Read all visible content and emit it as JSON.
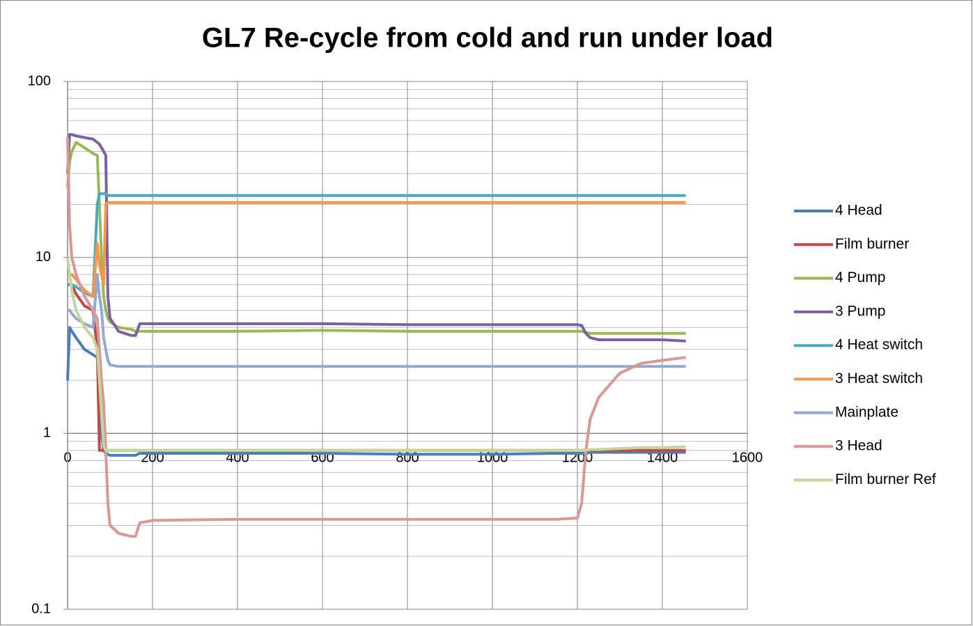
{
  "chart_data": {
    "type": "line",
    "title": "GL7 Re-cycle from cold and run under load",
    "log_y": true,
    "grid": true,
    "minor_grid": true,
    "legend": "right",
    "xlim": [
      0,
      1600
    ],
    "xticks": [
      0,
      200,
      400,
      600,
      800,
      1000,
      1200,
      1400,
      1600
    ],
    "ylim": [
      0.1,
      100
    ],
    "yticks": [
      0.1,
      1,
      10,
      100
    ],
    "x": [
      0,
      5,
      10,
      20,
      40,
      60,
      70,
      75,
      80,
      85,
      90,
      95,
      100,
      120,
      150,
      160,
      170,
      200,
      400,
      600,
      800,
      1000,
      1150,
      1200,
      1210,
      1220,
      1230,
      1250,
      1300,
      1350,
      1400,
      1455
    ],
    "series": [
      {
        "name": "4 Head",
        "color": "#4a7ebb",
        "values": [
          2,
          4,
          3.8,
          3.5,
          3,
          2.8,
          2.7,
          1.8,
          1,
          0.8,
          0.77,
          0.76,
          0.75,
          0.75,
          0.75,
          0.75,
          0.77,
          0.77,
          0.77,
          0.77,
          0.76,
          0.76,
          0.77,
          0.77,
          0.77,
          0.77,
          0.78,
          0.78,
          0.78,
          0.78,
          0.78,
          0.78
        ]
      },
      {
        "name": "Film burner",
        "color": "#be4b48",
        "values": [
          7,
          7,
          7,
          6.2,
          5.3,
          5,
          3,
          0.8,
          0.8,
          0.8,
          0.8,
          0.8,
          0.8,
          0.8,
          0.8,
          0.8,
          0.8,
          0.8,
          0.8,
          0.8,
          0.8,
          0.8,
          0.8,
          0.8,
          0.8,
          0.8,
          0.8,
          0.8,
          0.8,
          0.8,
          0.8,
          0.8
        ]
      },
      {
        "name": "4 Pump",
        "color": "#98b954",
        "values": [
          25,
          35,
          40,
          45,
          42,
          39,
          38,
          20,
          10,
          6,
          5,
          4.5,
          4.3,
          4,
          3.9,
          3.8,
          3.8,
          3.8,
          3.8,
          3.85,
          3.8,
          3.8,
          3.8,
          3.8,
          3.8,
          3.75,
          3.7,
          3.7,
          3.7,
          3.7,
          3.7,
          3.7
        ]
      },
      {
        "name": "3 Pump",
        "color": "#7d60a0",
        "values": [
          30,
          50,
          50,
          49,
          48,
          47,
          45,
          44,
          42,
          40,
          38,
          6,
          4.5,
          3.8,
          3.6,
          3.6,
          4.2,
          4.2,
          4.2,
          4.2,
          4.15,
          4.15,
          4.15,
          4.15,
          4.1,
          3.7,
          3.5,
          3.4,
          3.4,
          3.4,
          3.4,
          3.35
        ]
      },
      {
        "name": "4 Heat switch",
        "color": "#46aac5",
        "values": [
          7,
          7,
          7,
          6.8,
          6.3,
          6,
          20,
          23,
          23,
          23,
          23,
          22.5,
          22.5,
          22.5,
          22.5,
          22.5,
          22.5,
          22.5,
          22.5,
          22.5,
          22.5,
          22.5,
          22.5,
          22.5,
          22.5,
          22.5,
          22.5,
          22.5,
          22.5,
          22.5,
          22.5,
          22.5
        ]
      },
      {
        "name": "3 Heat switch",
        "color": "#f79646",
        "values": [
          8,
          8,
          8,
          7.5,
          6.5,
          6,
          12,
          9,
          8,
          7,
          20,
          20.5,
          20.5,
          20.5,
          20.5,
          20.5,
          20.5,
          20.5,
          20.5,
          20.5,
          20.5,
          20.5,
          20.5,
          20.5,
          20.5,
          20.5,
          20.5,
          20.5,
          20.5,
          20.5,
          20.5,
          20.5
        ]
      },
      {
        "name": "Mainplate",
        "color": "#93a9cf",
        "values": [
          5,
          5,
          4.8,
          4.5,
          4.2,
          4,
          8,
          6,
          5,
          3.5,
          3,
          2.6,
          2.45,
          2.4,
          2.4,
          2.4,
          2.4,
          2.4,
          2.4,
          2.4,
          2.4,
          2.4,
          2.4,
          2.4,
          2.4,
          2.4,
          2.4,
          2.4,
          2.4,
          2.4,
          2.4,
          2.4
        ]
      },
      {
        "name": "3 Head",
        "color": "#d99795",
        "values": [
          48,
          15,
          10,
          8,
          6,
          5,
          4.5,
          3,
          2,
          1.5,
          0.8,
          0.4,
          0.3,
          0.27,
          0.26,
          0.26,
          0.31,
          0.32,
          0.325,
          0.325,
          0.325,
          0.325,
          0.325,
          0.33,
          0.4,
          0.8,
          1.2,
          1.6,
          2.2,
          2.5,
          2.6,
          2.7
        ]
      },
      {
        "name": "Film burner Ref",
        "color": "#c3d69b",
        "values": [
          10,
          8,
          6.5,
          5,
          4,
          3.5,
          3,
          2,
          1.3,
          0.85,
          0.8,
          0.8,
          0.8,
          0.8,
          0.8,
          0.8,
          0.8,
          0.8,
          0.8,
          0.8,
          0.8,
          0.8,
          0.8,
          0.8,
          0.8,
          0.8,
          0.81,
          0.81,
          0.82,
          0.83,
          0.83,
          0.84
        ]
      }
    ]
  }
}
